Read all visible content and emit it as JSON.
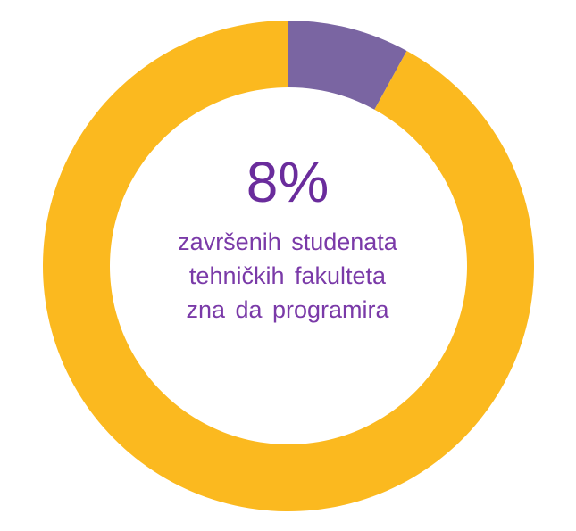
{
  "chart_data": {
    "type": "pie",
    "style": "donut",
    "slices": [
      {
        "label": "",
        "value": 8,
        "color": "#7a65a2"
      },
      {
        "label": "",
        "value": 92,
        "color": "#fbb91f"
      }
    ],
    "center_value": "8%",
    "center_caption": [
      "završenih studenata",
      "tehničkih fakulteta",
      "zna da programira"
    ],
    "legend": "none"
  }
}
